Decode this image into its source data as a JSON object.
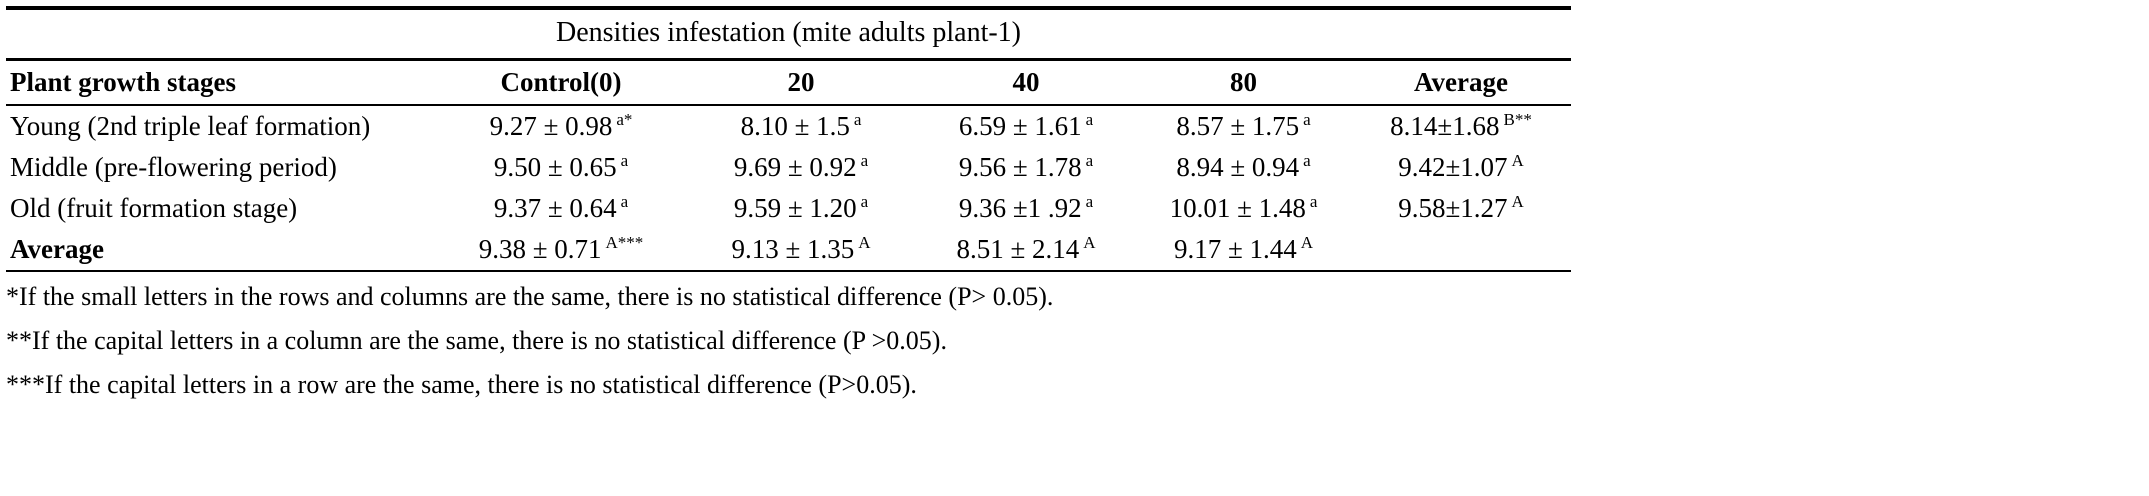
{
  "table": {
    "spanning_header": "Densities infestation (mite adults plant-1)",
    "columns": [
      "Plant growth stages",
      "Control(0)",
      "20",
      "40",
      "80",
      "Average"
    ],
    "rows": [
      {
        "label": "Young (2nd triple leaf formation)",
        "cells": [
          {
            "value": "9.27 ± 0.98",
            "sup": "a*"
          },
          {
            "value": "8.10 ± 1.5",
            "sup": "a"
          },
          {
            "value": "6.59 ± 1.61",
            "sup": "a"
          },
          {
            "value": "8.57 ± 1.75",
            "sup": "a"
          },
          {
            "value": "8.14±1.68",
            "sup": "B**"
          }
        ]
      },
      {
        "label": "Middle (pre-flowering period)",
        "cells": [
          {
            "value": "9.50 ± 0.65",
            "sup": "a"
          },
          {
            "value": "9.69 ± 0.92",
            "sup": "a"
          },
          {
            "value": "9.56 ± 1.78",
            "sup": "a"
          },
          {
            "value": "8.94 ± 0.94",
            "sup": "a"
          },
          {
            "value": "9.42±1.07",
            "sup": "A"
          }
        ]
      },
      {
        "label": "Old (fruit formation stage)",
        "cells": [
          {
            "value": "9.37 ± 0.64",
            "sup": "a"
          },
          {
            "value": "9.59 ± 1.20",
            "sup": "a"
          },
          {
            "value": "9.36 ±1 .92",
            "sup": "a"
          },
          {
            "value": "10.01 ± 1.48",
            "sup": "a"
          },
          {
            "value": "9.58±1.27",
            "sup": "A"
          }
        ]
      },
      {
        "label": "Average",
        "cells": [
          {
            "value": "9.38 ± 0.71",
            "sup": "A***"
          },
          {
            "value": "9.13 ± 1.35",
            "sup": "A"
          },
          {
            "value": "8.51 ± 2.14",
            "sup": "A"
          },
          {
            "value": "9.17 ± 1.44",
            "sup": "A"
          },
          {
            "value": "",
            "sup": ""
          }
        ]
      }
    ],
    "footnotes": [
      "*If the small letters in the rows and columns are the same, there is no statistical difference (P> 0.05).",
      "**If the capital letters in a column are the same, there is no statistical difference (P >0.05).",
      "***If the capital letters in a row are the same, there is no statistical difference (P>0.05)."
    ]
  }
}
